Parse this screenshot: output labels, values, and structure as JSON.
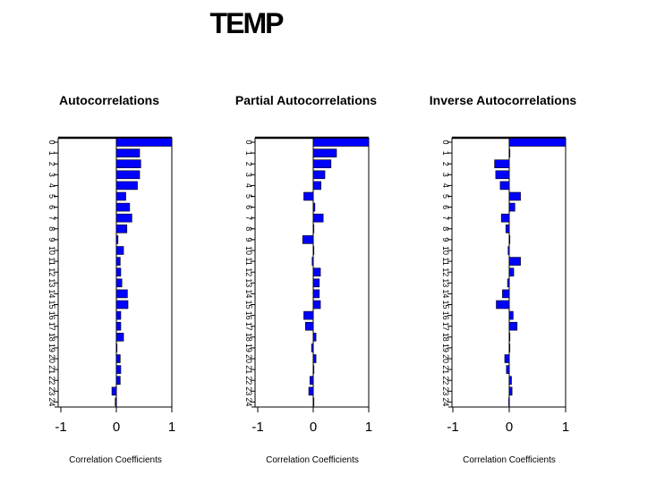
{
  "title": "TEMP",
  "chart_data": [
    {
      "type": "bar",
      "orientation": "horizontal",
      "title": "Autocorrelations",
      "xlabel": "Correlation Coefficients",
      "ylabel": "",
      "xlim": [
        -1,
        1
      ],
      "xticks": [
        -1,
        0,
        1
      ],
      "xtick_labels": [
        "-1",
        "0",
        "1"
      ],
      "lags": [
        0,
        1,
        2,
        3,
        4,
        5,
        6,
        7,
        8,
        9,
        10,
        11,
        12,
        13,
        14,
        15,
        16,
        17,
        18,
        19,
        20,
        21,
        22,
        23,
        24
      ],
      "values": [
        1.0,
        0.42,
        0.44,
        0.42,
        0.38,
        0.17,
        0.24,
        0.28,
        0.19,
        0.03,
        0.13,
        0.07,
        0.08,
        0.1,
        0.2,
        0.21,
        0.08,
        0.08,
        0.13,
        0.0,
        0.07,
        0.08,
        0.07,
        -0.08,
        -0.02
      ],
      "bar_color": "#0000ff"
    },
    {
      "type": "bar",
      "orientation": "horizontal",
      "title": "Partial Autocorrelations",
      "xlabel": "Correlation Coefficients",
      "ylabel": "",
      "xlim": [
        -1,
        1
      ],
      "xticks": [
        -1,
        0,
        1
      ],
      "xtick_labels": [
        "-1",
        "0",
        "1"
      ],
      "lags": [
        0,
        1,
        2,
        3,
        4,
        5,
        6,
        7,
        8,
        9,
        10,
        11,
        12,
        13,
        14,
        15,
        16,
        17,
        18,
        19,
        20,
        21,
        22,
        23,
        24
      ],
      "values": [
        1.0,
        0.42,
        0.32,
        0.21,
        0.14,
        -0.17,
        0.03,
        0.18,
        0.0,
        -0.19,
        0.0,
        -0.02,
        0.13,
        0.11,
        0.11,
        0.13,
        -0.17,
        -0.14,
        0.05,
        -0.03,
        0.05,
        0.0,
        -0.06,
        -0.08,
        0.0
      ],
      "bar_color": "#0000ff"
    },
    {
      "type": "bar",
      "orientation": "horizontal",
      "title": "Inverse Autocorrelations",
      "xlabel": "Correlation Coefficients",
      "ylabel": "",
      "xlim": [
        -1,
        1
      ],
      "xticks": [
        -1,
        0,
        1
      ],
      "xtick_labels": [
        "-1",
        "0",
        "1"
      ],
      "lags": [
        0,
        1,
        2,
        3,
        4,
        5,
        6,
        7,
        8,
        9,
        10,
        11,
        12,
        13,
        14,
        15,
        16,
        17,
        18,
        19,
        20,
        21,
        22,
        23,
        24
      ],
      "values": [
        1.0,
        0.0,
        -0.26,
        -0.24,
        -0.16,
        0.2,
        0.1,
        -0.14,
        -0.06,
        0.0,
        -0.02,
        0.2,
        0.08,
        -0.03,
        -0.12,
        -0.23,
        0.07,
        0.14,
        0.0,
        0.0,
        -0.08,
        -0.05,
        0.04,
        0.05,
        -0.01
      ],
      "bar_color": "#0000ff"
    }
  ]
}
